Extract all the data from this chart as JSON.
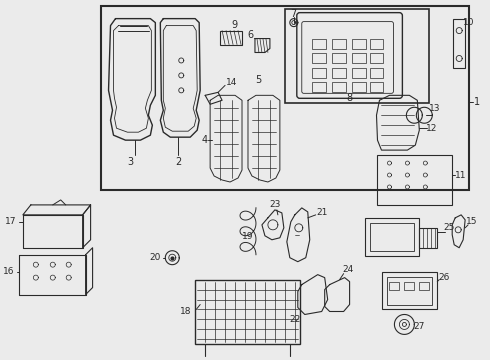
{
  "bg_color": "#ebebeb",
  "line_color": "#2a2a2a",
  "lw": 0.7
}
